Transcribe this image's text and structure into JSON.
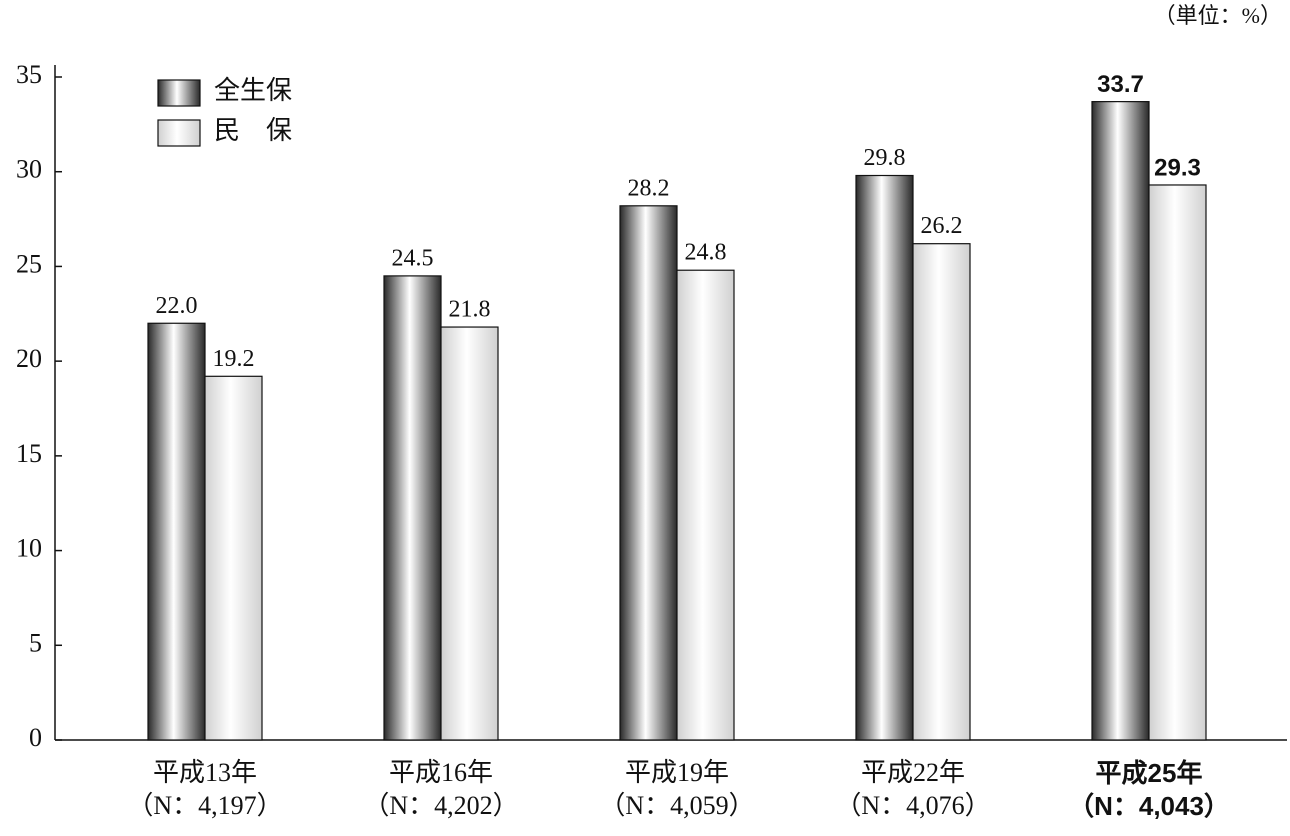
{
  "chart_data": {
    "type": "bar",
    "unit": "（単位：%）",
    "categories": [
      "平成13年",
      "平成16年",
      "平成19年",
      "平成22年",
      "平成25年"
    ],
    "n_labels": [
      "（N：4,197）",
      "（N：4,202）",
      "（N：4,059）",
      "（N：4,076）",
      "（N：4,043）"
    ],
    "series": [
      {
        "name": "全生保",
        "color": "#2a2a2a",
        "values": [
          22.0,
          24.5,
          28.2,
          29.8,
          33.7
        ],
        "value_labels": [
          "22.0",
          "24.5",
          "28.2",
          "29.8",
          "33.7"
        ]
      },
      {
        "name": "民　保",
        "color": "#d0d0d0",
        "values": [
          19.2,
          21.8,
          24.8,
          26.2,
          29.3
        ],
        "value_labels": [
          "19.2",
          "21.8",
          "24.8",
          "26.2",
          "29.3"
        ]
      }
    ],
    "ylim": [
      0,
      35
    ],
    "yticks": [
      0,
      5,
      10,
      15,
      20,
      25,
      30,
      35
    ],
    "legend": "upper-left"
  }
}
